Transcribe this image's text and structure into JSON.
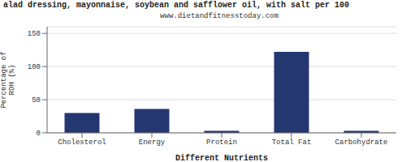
{
  "chart_data": {
    "type": "bar",
    "title": "alad dressing, mayonnaise, soybean and safflower oil, with salt per 100",
    "subtitle": "www.dietandfitnesstoday.com",
    "xlabel": "Different Nutrients",
    "ylabel": "Percentage of\nRDH (%)",
    "categories": [
      "Cholesterol",
      "Energy",
      "Protein",
      "Total Fat",
      "Carbohydrate"
    ],
    "values": [
      30,
      36,
      3,
      122,
      3
    ],
    "color": "#253771",
    "ylim": [
      0,
      160
    ],
    "yticks": [
      0,
      50,
      100,
      150
    ],
    "grid": true
  }
}
